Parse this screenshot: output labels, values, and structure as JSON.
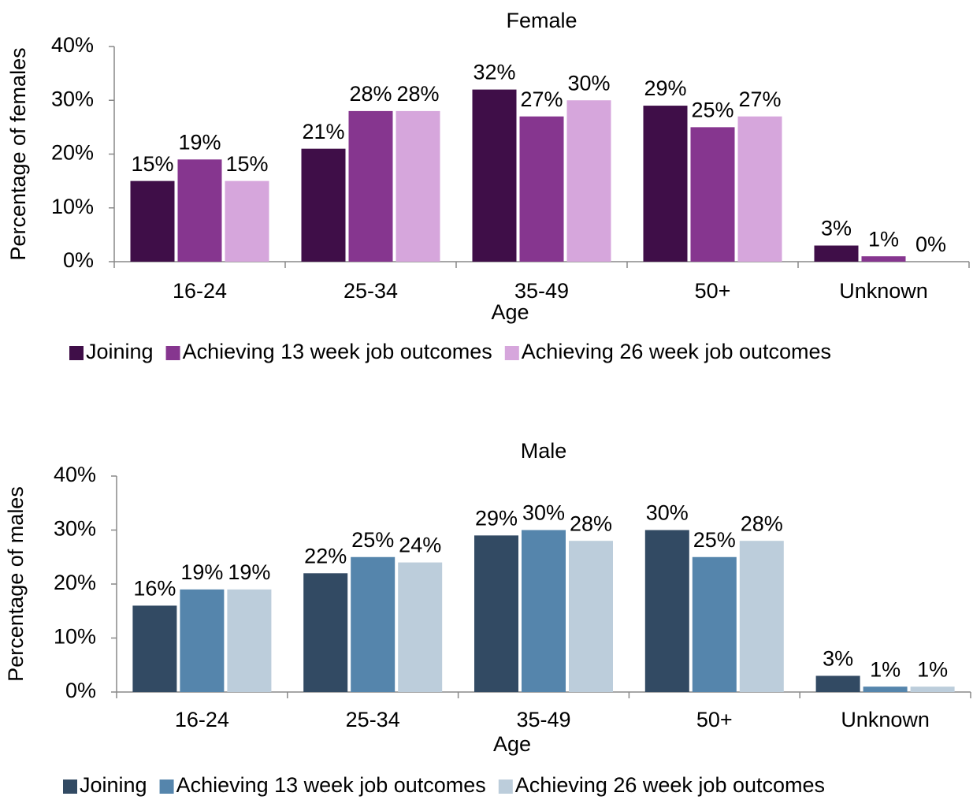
{
  "chart_data": [
    {
      "type": "bar",
      "title": "Female",
      "x_label": "Age",
      "y_label": "Percentage of females",
      "categories": [
        "16-24",
        "25-34",
        "35-49",
        "50+",
        "Unknown"
      ],
      "series": [
        {
          "name": "Joining",
          "color": "#3f0e48",
          "values": [
            15,
            21,
            32,
            29,
            3
          ],
          "value_labels": [
            "15%",
            "21%",
            "32%",
            "29%",
            "3%"
          ]
        },
        {
          "name": "Achieving 13 week job outcomes",
          "color": "#86368f",
          "values": [
            19,
            28,
            27,
            25,
            1
          ],
          "value_labels": [
            "19%",
            "28%",
            "27%",
            "25%",
            "1%"
          ]
        },
        {
          "name": "Achieving 26 week job outcomes",
          "color": "#d6a6dc",
          "values": [
            15,
            28,
            30,
            27,
            0
          ],
          "value_labels": [
            "15%",
            "28%",
            "30%",
            "27%",
            "0%"
          ]
        }
      ],
      "ylim": [
        0,
        40
      ],
      "yticks": [
        {
          "value": 0,
          "label": "0%"
        },
        {
          "value": 10,
          "label": "10%"
        },
        {
          "value": 20,
          "label": "20%"
        },
        {
          "value": 30,
          "label": "30%"
        },
        {
          "value": 40,
          "label": "40%"
        }
      ],
      "legend": "bottom"
    },
    {
      "type": "bar",
      "title": "Male",
      "x_label": "Age",
      "y_label": "Percentage of males",
      "categories": [
        "16-24",
        "25-34",
        "35-49",
        "50+",
        "Unknown"
      ],
      "series": [
        {
          "name": "Joining",
          "color": "#324a63",
          "values": [
            16,
            22,
            29,
            30,
            3
          ],
          "value_labels": [
            "16%",
            "22%",
            "29%",
            "30%",
            "3%"
          ]
        },
        {
          "name": "Achieving 13 week job outcomes",
          "color": "#5585ac",
          "values": [
            19,
            25,
            30,
            25,
            1
          ],
          "value_labels": [
            "19%",
            "25%",
            "30%",
            "25%",
            "1%"
          ]
        },
        {
          "name": "Achieving 26 week job outcomes",
          "color": "#bccddb",
          "values": [
            19,
            24,
            28,
            28,
            1
          ],
          "value_labels": [
            "19%",
            "24%",
            "28%",
            "28%",
            "1%"
          ]
        }
      ],
      "ylim": [
        0,
        40
      ],
      "yticks": [
        {
          "value": 0,
          "label": "0%"
        },
        {
          "value": 10,
          "label": "10%"
        },
        {
          "value": 20,
          "label": "20%"
        },
        {
          "value": 30,
          "label": "30%"
        },
        {
          "value": 40,
          "label": "40%"
        }
      ],
      "legend": "bottom"
    }
  ]
}
